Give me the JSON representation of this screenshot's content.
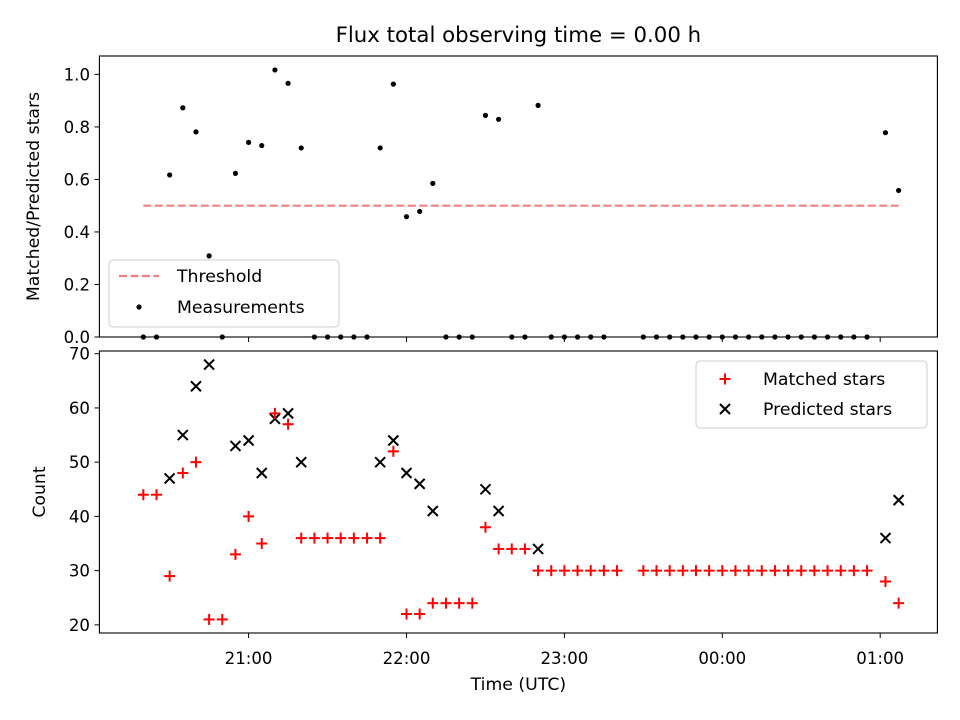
{
  "chart_data": {
    "title": "Flux total observing time = 0.00 h",
    "xlabel": "Time (UTC)",
    "x_tick_labels": [
      "21:00",
      "22:00",
      "23:00",
      "00:00",
      "01:00"
    ],
    "top": {
      "type": "scatter",
      "ylabel": "Matched/Predicted stars",
      "ylim": [
        0.0,
        1.07
      ],
      "yticks": [
        "0.0",
        "0.2",
        "0.4",
        "0.6",
        "0.8",
        "1.0"
      ],
      "legend_position": "lower-left",
      "threshold": {
        "name": "Threshold",
        "value": 0.5,
        "color": "#f08080",
        "x_start": "20:20",
        "x_end": "01:07"
      },
      "measurements": {
        "name": "Measurements",
        "color": "#000000",
        "points": [
          {
            "x": "20:20",
            "y": 0.0
          },
          {
            "x": "20:25",
            "y": 0.0
          },
          {
            "x": "20:30",
            "y": 0.617
          },
          {
            "x": "20:35",
            "y": 0.873
          },
          {
            "x": "20:40",
            "y": 0.781
          },
          {
            "x": "20:45",
            "y": 0.309
          },
          {
            "x": "20:50",
            "y": 0.0
          },
          {
            "x": "20:55",
            "y": 0.623
          },
          {
            "x": "21:00",
            "y": 0.741
          },
          {
            "x": "21:05",
            "y": 0.729
          },
          {
            "x": "21:10",
            "y": 1.017
          },
          {
            "x": "21:15",
            "y": 0.966
          },
          {
            "x": "21:20",
            "y": 0.72
          },
          {
            "x": "21:25",
            "y": 0.0
          },
          {
            "x": "21:30",
            "y": 0.0
          },
          {
            "x": "21:35",
            "y": 0.0
          },
          {
            "x": "21:40",
            "y": 0.0
          },
          {
            "x": "21:45",
            "y": 0.0
          },
          {
            "x": "21:50",
            "y": 0.72
          },
          {
            "x": "21:55",
            "y": 0.963
          },
          {
            "x": "22:00",
            "y": 0.458
          },
          {
            "x": "22:05",
            "y": 0.478
          },
          {
            "x": "22:10",
            "y": 0.585
          },
          {
            "x": "22:15",
            "y": 0.0
          },
          {
            "x": "22:20",
            "y": 0.0
          },
          {
            "x": "22:25",
            "y": 0.0
          },
          {
            "x": "22:30",
            "y": 0.844
          },
          {
            "x": "22:35",
            "y": 0.829
          },
          {
            "x": "22:40",
            "y": 0.0
          },
          {
            "x": "22:45",
            "y": 0.0
          },
          {
            "x": "22:50",
            "y": 0.882
          },
          {
            "x": "22:55",
            "y": 0.0
          },
          {
            "x": "23:00",
            "y": 0.0
          },
          {
            "x": "23:05",
            "y": 0.0
          },
          {
            "x": "23:10",
            "y": 0.0
          },
          {
            "x": "23:15",
            "y": 0.0
          },
          {
            "x": "23:30",
            "y": 0.0
          },
          {
            "x": "23:35",
            "y": 0.0
          },
          {
            "x": "23:40",
            "y": 0.0
          },
          {
            "x": "23:45",
            "y": 0.0
          },
          {
            "x": "23:50",
            "y": 0.0
          },
          {
            "x": "23:55",
            "y": 0.0
          },
          {
            "x": "00:00",
            "y": 0.0
          },
          {
            "x": "00:05",
            "y": 0.0
          },
          {
            "x": "00:10",
            "y": 0.0
          },
          {
            "x": "00:15",
            "y": 0.0
          },
          {
            "x": "00:20",
            "y": 0.0
          },
          {
            "x": "00:25",
            "y": 0.0
          },
          {
            "x": "00:30",
            "y": 0.0
          },
          {
            "x": "00:35",
            "y": 0.0
          },
          {
            "x": "00:40",
            "y": 0.0
          },
          {
            "x": "00:45",
            "y": 0.0
          },
          {
            "x": "00:50",
            "y": 0.0
          },
          {
            "x": "00:55",
            "y": 0.0
          },
          {
            "x": "01:02",
            "y": 0.778
          },
          {
            "x": "01:07",
            "y": 0.558
          }
        ]
      }
    },
    "bottom": {
      "type": "scatter",
      "ylabel": "Count",
      "ylim": [
        18.5,
        70.5
      ],
      "yticks": [
        "20",
        "30",
        "40",
        "50",
        "60",
        "70"
      ],
      "legend_position": "upper-right",
      "series": [
        {
          "name": "Matched stars",
          "marker": "plus",
          "color": "#ff0000",
          "points": [
            {
              "x": "20:20",
              "y": 44
            },
            {
              "x": "20:25",
              "y": 44
            },
            {
              "x": "20:30",
              "y": 29
            },
            {
              "x": "20:35",
              "y": 48
            },
            {
              "x": "20:40",
              "y": 50
            },
            {
              "x": "20:45",
              "y": 21
            },
            {
              "x": "20:50",
              "y": 21
            },
            {
              "x": "20:55",
              "y": 33
            },
            {
              "x": "21:00",
              "y": 40
            },
            {
              "x": "21:05",
              "y": 35
            },
            {
              "x": "21:10",
              "y": 59
            },
            {
              "x": "21:15",
              "y": 57
            },
            {
              "x": "21:20",
              "y": 36
            },
            {
              "x": "21:25",
              "y": 36
            },
            {
              "x": "21:30",
              "y": 36
            },
            {
              "x": "21:35",
              "y": 36
            },
            {
              "x": "21:40",
              "y": 36
            },
            {
              "x": "21:45",
              "y": 36
            },
            {
              "x": "21:50",
              "y": 36
            },
            {
              "x": "21:55",
              "y": 52
            },
            {
              "x": "22:00",
              "y": 22
            },
            {
              "x": "22:05",
              "y": 22
            },
            {
              "x": "22:10",
              "y": 24
            },
            {
              "x": "22:15",
              "y": 24
            },
            {
              "x": "22:20",
              "y": 24
            },
            {
              "x": "22:25",
              "y": 24
            },
            {
              "x": "22:30",
              "y": 38
            },
            {
              "x": "22:35",
              "y": 34
            },
            {
              "x": "22:40",
              "y": 34
            },
            {
              "x": "22:45",
              "y": 34
            },
            {
              "x": "22:50",
              "y": 30
            },
            {
              "x": "22:55",
              "y": 30
            },
            {
              "x": "23:00",
              "y": 30
            },
            {
              "x": "23:05",
              "y": 30
            },
            {
              "x": "23:10",
              "y": 30
            },
            {
              "x": "23:15",
              "y": 30
            },
            {
              "x": "23:20",
              "y": 30
            },
            {
              "x": "23:30",
              "y": 30
            },
            {
              "x": "23:35",
              "y": 30
            },
            {
              "x": "23:40",
              "y": 30
            },
            {
              "x": "23:45",
              "y": 30
            },
            {
              "x": "23:50",
              "y": 30
            },
            {
              "x": "23:55",
              "y": 30
            },
            {
              "x": "00:00",
              "y": 30
            },
            {
              "x": "00:05",
              "y": 30
            },
            {
              "x": "00:10",
              "y": 30
            },
            {
              "x": "00:15",
              "y": 30
            },
            {
              "x": "00:20",
              "y": 30
            },
            {
              "x": "00:25",
              "y": 30
            },
            {
              "x": "00:30",
              "y": 30
            },
            {
              "x": "00:35",
              "y": 30
            },
            {
              "x": "00:40",
              "y": 30
            },
            {
              "x": "00:45",
              "y": 30
            },
            {
              "x": "00:50",
              "y": 30
            },
            {
              "x": "00:55",
              "y": 30
            },
            {
              "x": "01:02",
              "y": 28
            },
            {
              "x": "01:07",
              "y": 24
            }
          ]
        },
        {
          "name": "Predicted stars",
          "marker": "x",
          "color": "#000000",
          "points": [
            {
              "x": "20:30",
              "y": 47
            },
            {
              "x": "20:35",
              "y": 55
            },
            {
              "x": "20:40",
              "y": 64
            },
            {
              "x": "20:45",
              "y": 68
            },
            {
              "x": "20:55",
              "y": 53
            },
            {
              "x": "21:00",
              "y": 54
            },
            {
              "x": "21:05",
              "y": 48
            },
            {
              "x": "21:10",
              "y": 58
            },
            {
              "x": "21:15",
              "y": 59
            },
            {
              "x": "21:20",
              "y": 50
            },
            {
              "x": "21:50",
              "y": 50
            },
            {
              "x": "21:55",
              "y": 54
            },
            {
              "x": "22:00",
              "y": 48
            },
            {
              "x": "22:05",
              "y": 46
            },
            {
              "x": "22:10",
              "y": 41
            },
            {
              "x": "22:30",
              "y": 45
            },
            {
              "x": "22:35",
              "y": 41
            },
            {
              "x": "22:50",
              "y": 34
            },
            {
              "x": "01:02",
              "y": 36
            },
            {
              "x": "01:07",
              "y": 43
            }
          ]
        }
      ]
    }
  }
}
